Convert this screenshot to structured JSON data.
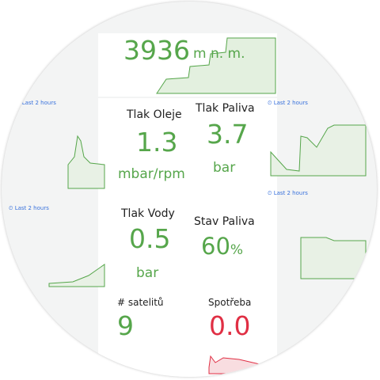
{
  "altitude": {
    "value": "3936",
    "unit": "m n. m."
  },
  "time_ranges": [
    "Last 2 hours",
    "Last 2 hours",
    "Last 2 hours",
    "Last 2 hours"
  ],
  "panels": [
    {
      "title": "Tlak Oleje",
      "value": "1.3",
      "unit": "mbar/rpm"
    },
    {
      "title": "Tlak Paliva",
      "value": "3.7",
      "unit": "bar"
    },
    {
      "title": "Tlak Vody",
      "value": "0.5",
      "unit": "bar"
    },
    {
      "title": "Stav Paliva",
      "value": "60",
      "unit": "%"
    },
    {
      "title": "# satelitů",
      "value": "9"
    },
    {
      "title": "Spotřeba",
      "value": "0.0"
    }
  ]
}
